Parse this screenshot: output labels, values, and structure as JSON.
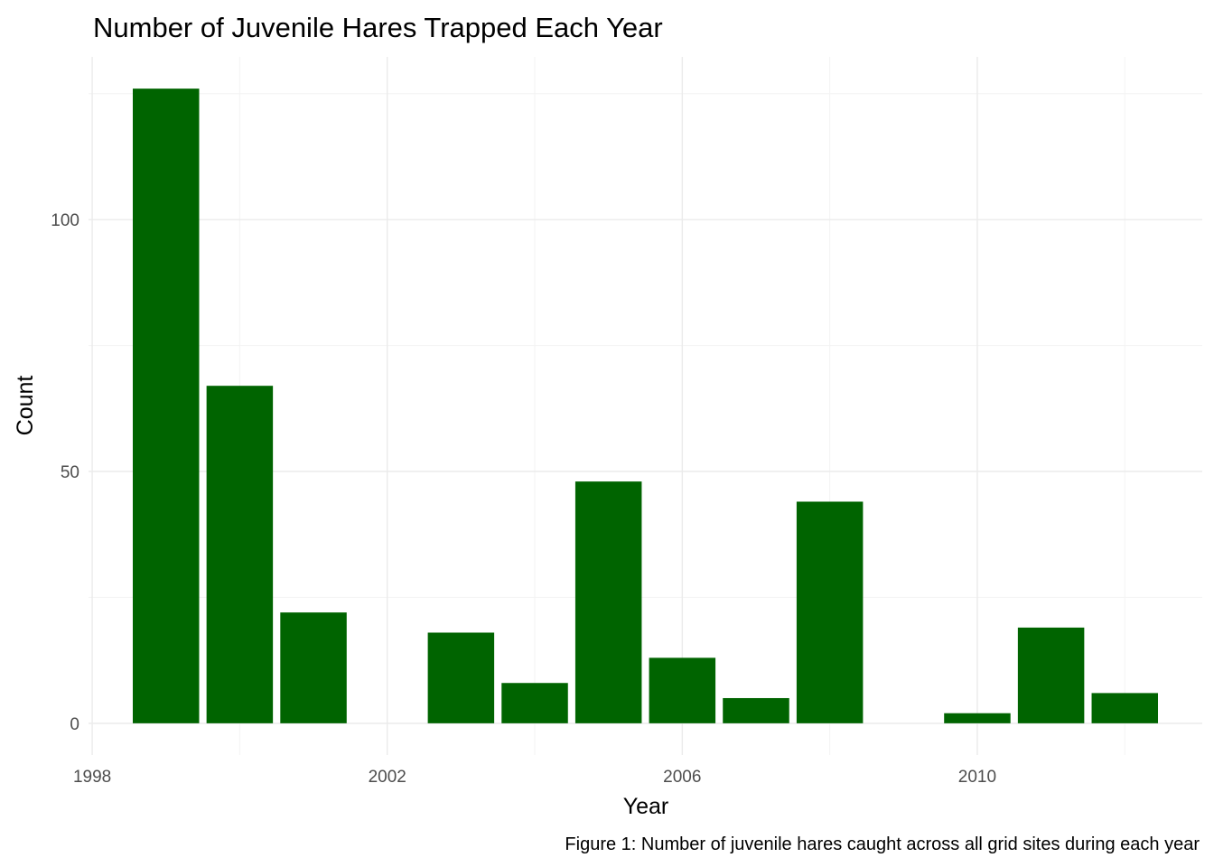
{
  "chart_data": {
    "type": "bar",
    "title": "Number of Juvenile Hares Trapped Each Year",
    "xlabel": "Year",
    "ylabel": "Count",
    "caption": "Figure 1: Number of juvenile hares caught across all grid sites during each year",
    "x": [
      1999,
      2000,
      2001,
      2003,
      2004,
      2005,
      2006,
      2007,
      2008,
      2010,
      2011,
      2012
    ],
    "values": [
      126,
      67,
      22,
      18,
      8,
      48,
      13,
      5,
      44,
      2,
      19,
      6
    ],
    "xlim": [
      1997.95,
      2013.05
    ],
    "ylim": [
      -6.3,
      132.3
    ],
    "x_ticks": [
      1998,
      2002,
      2006,
      2010
    ],
    "x_tick_labels": [
      "1998",
      "2002",
      "2006",
      "2010"
    ],
    "x_minor_ticks": [
      2000,
      2004,
      2008,
      2012
    ],
    "y_ticks": [
      0,
      50,
      100
    ],
    "y_tick_labels": [
      "0",
      "50",
      "100"
    ],
    "y_minor_ticks": [
      25,
      75,
      125
    ],
    "bar_color": "#006400",
    "grid": true,
    "legend": "none"
  }
}
